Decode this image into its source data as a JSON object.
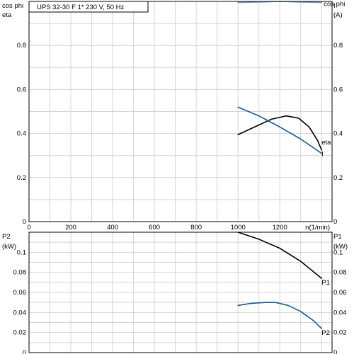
{
  "chart_data": [
    {
      "type": "line",
      "title": "UPS 32-30 F    1* 230 V, 50 Hz",
      "y_left_label_1": "cos phi",
      "y_left_label_2": "eta",
      "y_right_label_1": "I",
      "y_right_label_2": "(A)",
      "xlabel": "n(1/min)",
      "xlim": [
        0,
        1450
      ],
      "ylim": [
        0,
        1.0
      ],
      "x_ticks": [
        0,
        200,
        400,
        600,
        800,
        1000,
        1200
      ],
      "y_ticks": [
        0,
        0.2,
        0.4,
        0.6,
        0.8
      ],
      "grid": true,
      "series": [
        {
          "name": "cos phi",
          "color": "#6f98c0",
          "x": [
            1000,
            1100,
            1200,
            1300,
            1400
          ],
          "y": [
            0.995,
            0.997,
            1.0,
            0.997,
            0.995
          ]
        },
        {
          "name": "eta",
          "color": "#000000",
          "x": [
            1000,
            1080,
            1160,
            1230,
            1290,
            1340,
            1380,
            1400
          ],
          "y": [
            0.395,
            0.43,
            0.465,
            0.48,
            0.47,
            0.43,
            0.37,
            0.325
          ]
        },
        {
          "name": "I",
          "color": "#1f5a8c",
          "x": [
            1000,
            1100,
            1200,
            1300,
            1400
          ],
          "y": [
            0.52,
            0.48,
            0.43,
            0.375,
            0.31
          ]
        }
      ]
    },
    {
      "type": "line",
      "y_left_label_1": "P2",
      "y_left_label_2": "(kW)",
      "y_right_label_1": "P1",
      "y_right_label_2": "(kW)",
      "xlim": [
        0,
        1450
      ],
      "ylim": [
        0,
        0.12
      ],
      "y_ticks": [
        0,
        0.02,
        0.04,
        0.06,
        0.08,
        0.1
      ],
      "grid": true,
      "series": [
        {
          "name": "P1",
          "color": "#000000",
          "x": [
            1000,
            1100,
            1200,
            1300,
            1400
          ],
          "y": [
            0.12,
            0.113,
            0.104,
            0.091,
            0.074
          ]
        },
        {
          "name": "P2",
          "color": "#1f5a8c",
          "x": [
            1000,
            1060,
            1130,
            1180,
            1240,
            1300,
            1360,
            1400
          ],
          "y": [
            0.047,
            0.049,
            0.05,
            0.05,
            0.047,
            0.041,
            0.032,
            0.024
          ]
        }
      ]
    }
  ]
}
